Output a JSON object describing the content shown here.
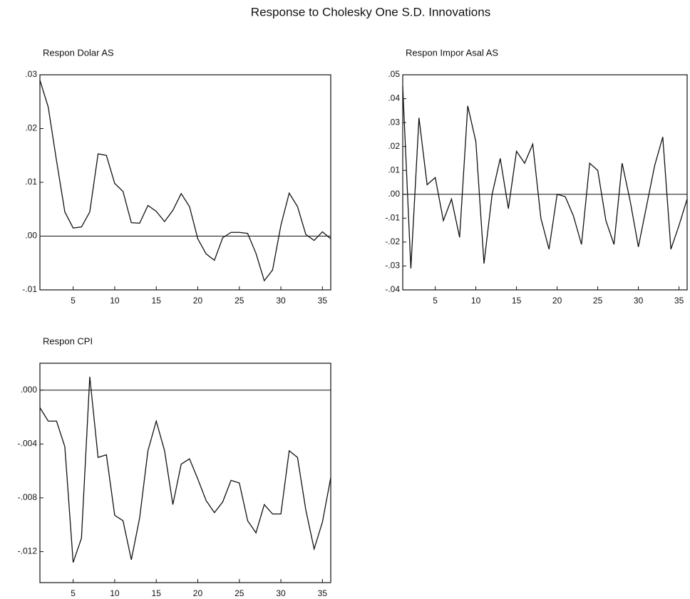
{
  "title": "Response to Cholesky One S.D. Innovations",
  "chart_data": [
    {
      "type": "line",
      "title": "Respon Dolar AS",
      "x": [
        1,
        2,
        3,
        4,
        5,
        6,
        7,
        8,
        9,
        10,
        11,
        12,
        13,
        14,
        15,
        16,
        17,
        18,
        19,
        20,
        21,
        22,
        23,
        24,
        25,
        26,
        27,
        28,
        29,
        30,
        31,
        32,
        33,
        34,
        35,
        36
      ],
      "series": [
        {
          "color": "#111111",
          "values": [
            0.029,
            0.024,
            0.014,
            0.0045,
            0.0015,
            0.0017,
            0.0045,
            0.0153,
            0.015,
            0.0098,
            0.0083,
            0.0025,
            0.0024,
            0.0057,
            0.0046,
            0.0027,
            0.0048,
            0.0079,
            0.0055,
            -0.0005,
            -0.0033,
            -0.0045,
            -0.0003,
            0.0007,
            0.0007,
            0.0005,
            -0.0032,
            -0.0083,
            -0.0063,
            0.002,
            0.008,
            0.0055,
            0.0003,
            -0.0008,
            0.0008,
            -0.0005
          ]
        }
      ],
      "xlim": [
        1,
        36
      ],
      "xticks": [
        5,
        10,
        15,
        20,
        25,
        30,
        35
      ],
      "ylim": [
        -0.01,
        0.03
      ],
      "yticks": [
        {
          "value": -0.01,
          "label": "-.01"
        },
        {
          "value": 0,
          "label": ".00"
        },
        {
          "value": 0.01,
          "label": ".01"
        },
        {
          "value": 0.02,
          "label": ".02"
        },
        {
          "value": 0.03,
          "label": ".03"
        }
      ]
    },
    {
      "type": "line",
      "title": "Respon Impor Asal AS",
      "x": [
        1,
        2,
        3,
        4,
        5,
        6,
        7,
        8,
        9,
        10,
        11,
        12,
        13,
        14,
        15,
        16,
        17,
        18,
        19,
        20,
        21,
        22,
        23,
        24,
        25,
        26,
        27,
        28,
        29,
        30,
        31,
        32,
        33,
        34,
        35,
        36
      ],
      "series": [
        {
          "color": "#111111",
          "values": [
            0.045,
            -0.031,
            0.032,
            0.004,
            0.007,
            -0.011,
            -0.002,
            -0.018,
            0.037,
            0.022,
            -0.029,
            0.0,
            0.015,
            -0.006,
            0.018,
            0.013,
            0.021,
            -0.01,
            -0.023,
            0.0,
            -0.001,
            -0.009,
            -0.021,
            0.013,
            0.01,
            -0.011,
            -0.021,
            0.013,
            -0.003,
            -0.022,
            -0.005,
            0.012,
            0.024,
            -0.023,
            -0.013,
            -0.002
          ]
        }
      ],
      "xlim": [
        1,
        36
      ],
      "xticks": [
        5,
        10,
        15,
        20,
        25,
        30,
        35
      ],
      "ylim": [
        -0.04,
        0.05
      ],
      "yticks": [
        {
          "value": -0.04,
          "label": "-.04"
        },
        {
          "value": -0.03,
          "label": "-.03"
        },
        {
          "value": -0.02,
          "label": "-.02"
        },
        {
          "value": -0.01,
          "label": "-.01"
        },
        {
          "value": 0,
          "label": ".00"
        },
        {
          "value": 0.01,
          "label": ".01"
        },
        {
          "value": 0.02,
          "label": ".02"
        },
        {
          "value": 0.03,
          "label": ".03"
        },
        {
          "value": 0.04,
          "label": ".04"
        },
        {
          "value": 0.05,
          "label": ".05"
        }
      ]
    },
    {
      "type": "line",
      "title": "Respon CPI",
      "x": [
        1,
        2,
        3,
        4,
        5,
        6,
        7,
        8,
        9,
        10,
        11,
        12,
        13,
        14,
        15,
        16,
        17,
        18,
        19,
        20,
        21,
        22,
        23,
        24,
        25,
        26,
        27,
        28,
        29,
        30,
        31,
        32,
        33,
        34,
        35,
        36
      ],
      "series": [
        {
          "color": "#111111",
          "values": [
            -0.0013,
            -0.0023,
            -0.0023,
            -0.0042,
            -0.0128,
            -0.011,
            0.001,
            -0.005,
            -0.0048,
            -0.0093,
            -0.0097,
            -0.0126,
            -0.0095,
            -0.0045,
            -0.0023,
            -0.0045,
            -0.0085,
            -0.0055,
            -0.0051,
            -0.0066,
            -0.0082,
            -0.0091,
            -0.0083,
            -0.0067,
            -0.0069,
            -0.0097,
            -0.0106,
            -0.0085,
            -0.0092,
            -0.0092,
            -0.0045,
            -0.005,
            -0.0089,
            -0.0118,
            -0.0098,
            -0.0065
          ]
        }
      ],
      "xlim": [
        1,
        36
      ],
      "xticks": [
        5,
        10,
        15,
        20,
        25,
        30,
        35
      ],
      "ylim": [
        -0.0143,
        0.002
      ],
      "yticks": [
        {
          "value": -0.012,
          "label": "-.012"
        },
        {
          "value": -0.008,
          "label": "-.008"
        },
        {
          "value": -0.004,
          "label": "-.004"
        },
        {
          "value": 0,
          "label": ".000"
        }
      ]
    }
  ]
}
